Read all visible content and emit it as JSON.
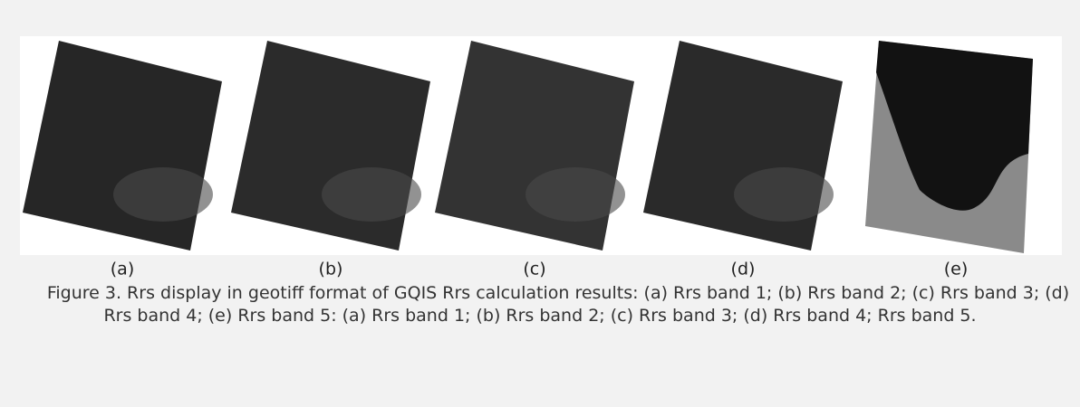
{
  "figure": {
    "panels": [
      {
        "label": "(a)"
      },
      {
        "label": "(b)"
      },
      {
        "label": "(c)"
      },
      {
        "label": "(d)"
      },
      {
        "label": "(e)"
      }
    ],
    "caption": "Figure 3. Rrs display in geotiff format of GQIS Rrs calculation results: (a) Rrs band 1; (b) Rrs band 2; (c) Rrs band 3; (d) Rrs band 4; (e) Rrs band 5: (a) Rrs band 1; (b) Rrs band 2; (c) Rrs band 3; (d) Rrs band 4; Rrs band 5."
  }
}
